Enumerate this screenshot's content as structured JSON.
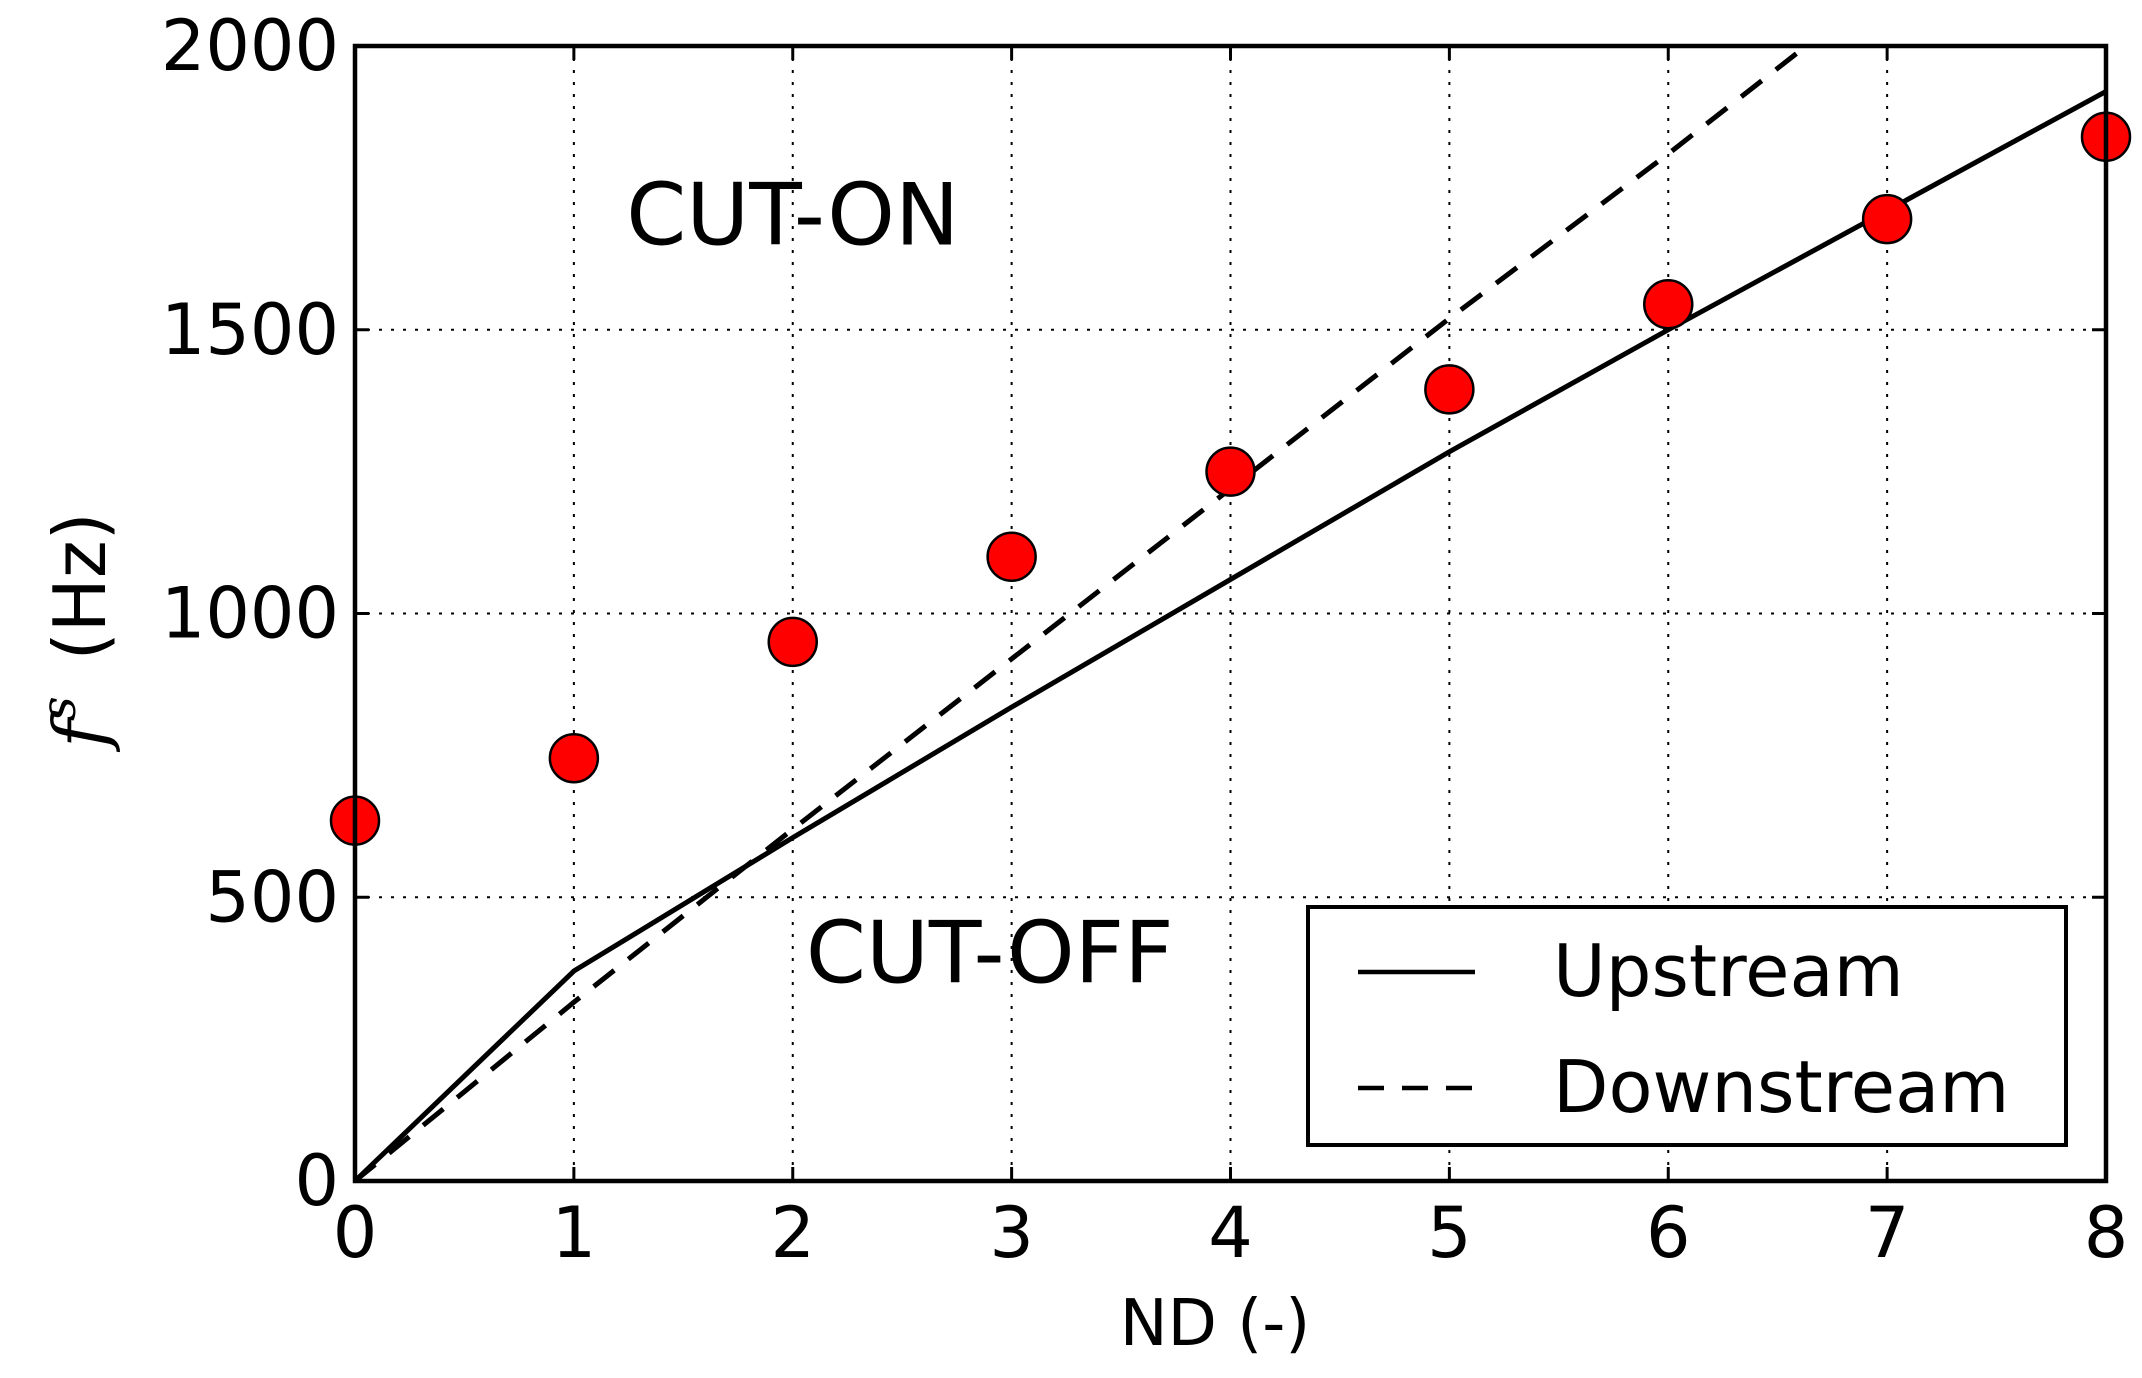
{
  "chart_data": {
    "type": "line",
    "xlabel": "ND (-)",
    "ylabel": {
      "symbol": "f",
      "superscript": "s",
      "unit": "(Hz)"
    },
    "xlim": [
      0,
      8
    ],
    "ylim": [
      0,
      2000
    ],
    "x_ticks": [
      "0",
      "1",
      "2",
      "3",
      "4",
      "5",
      "6",
      "7",
      "8"
    ],
    "y_ticks": [
      "0",
      "500",
      "1000",
      "1500",
      "2000"
    ],
    "grid": true,
    "legend_position": "lower-right",
    "annotations": [
      {
        "text": "CUT-ON",
        "x": 2.0,
        "y": 1650
      },
      {
        "text": "CUT-OFF",
        "x": 2.9,
        "y": 350
      }
    ],
    "series": [
      {
        "name": "Upstream",
        "style": "solid",
        "color": "#000000",
        "x": [
          0,
          1,
          2,
          3,
          4,
          5,
          6,
          7,
          8
        ],
        "y": [
          0,
          370,
          605,
          835,
          1060,
          1285,
          1500,
          1710,
          1920
        ]
      },
      {
        "name": "Downstream",
        "style": "dashed",
        "color": "#000000",
        "x": [
          0,
          1,
          2,
          3,
          4,
          5,
          6,
          6.63
        ],
        "y": [
          0,
          315,
          620,
          920,
          1220,
          1520,
          1810,
          2000
        ]
      },
      {
        "name": "",
        "style": "markers",
        "color": "#ff0000",
        "x": [
          0,
          1,
          2,
          3,
          4,
          5,
          6,
          7,
          8
        ],
        "y": [
          635,
          745,
          950,
          1100,
          1250,
          1395,
          1545,
          1695,
          1840
        ]
      }
    ]
  }
}
